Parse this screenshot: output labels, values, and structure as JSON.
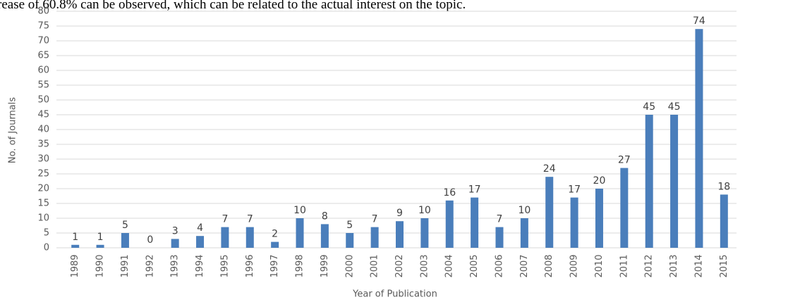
{
  "lead_text": "rease of 60.8% can be observed, which can be related to the actual interest on the topic.",
  "chart_data": {
    "type": "bar",
    "y_label": "No. of Journals",
    "x_label": "Year of Publication",
    "categories": [
      "1989",
      "1990",
      "1991",
      "1992",
      "1993",
      "1994",
      "1995",
      "1996",
      "1997",
      "1998",
      "1999",
      "2000",
      "2001",
      "2002",
      "2003",
      "2004",
      "2005",
      "2006",
      "2007",
      "2008",
      "2009",
      "2010",
      "2011",
      "2012",
      "2013",
      "2014",
      "2015"
    ],
    "values": [
      1,
      1,
      5,
      0,
      3,
      4,
      7,
      7,
      2,
      10,
      8,
      5,
      7,
      9,
      10,
      16,
      17,
      7,
      10,
      24,
      17,
      20,
      27,
      45,
      45,
      74,
      18
    ],
    "color": "#4a7ebb",
    "ylim": [
      0,
      80
    ],
    "yticks": [
      0,
      5,
      10,
      15,
      20,
      25,
      30,
      35,
      40,
      45,
      50,
      55,
      60,
      65,
      70,
      75,
      80
    ],
    "grid": true
  }
}
